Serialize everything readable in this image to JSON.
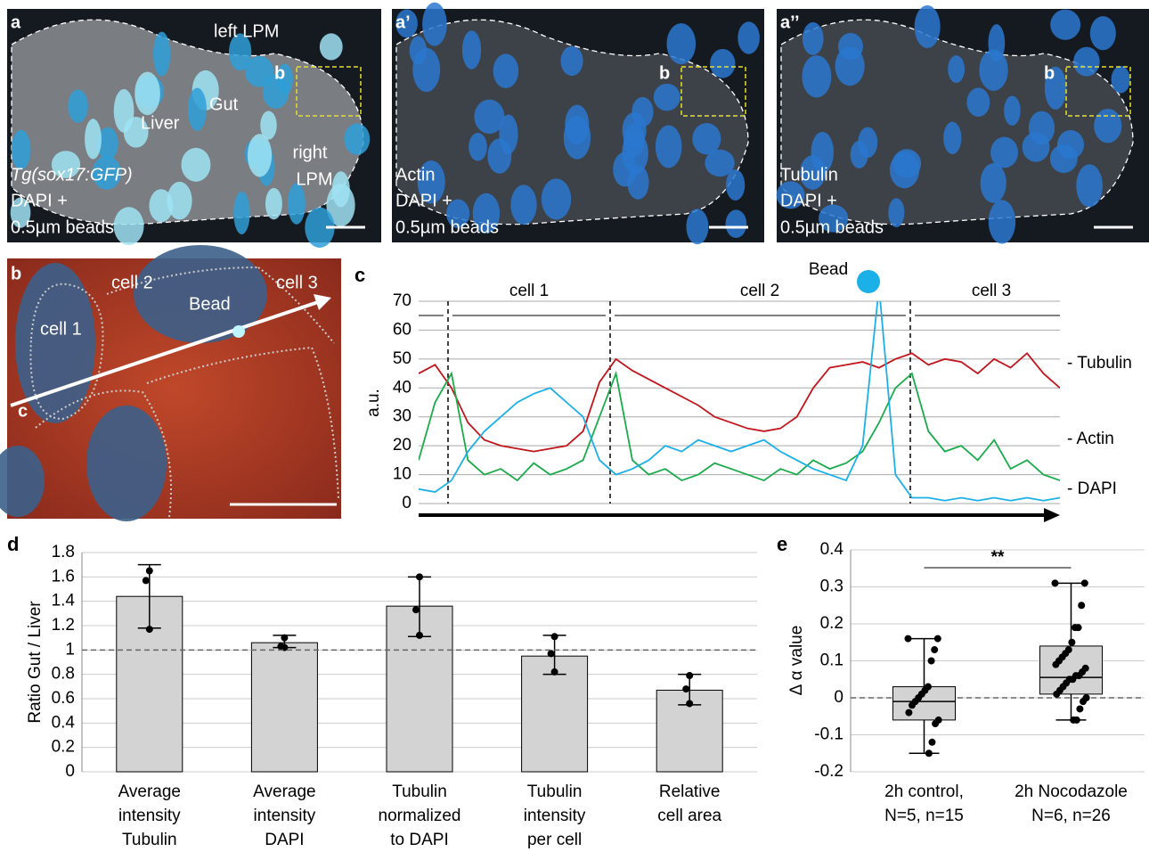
{
  "images": [
    {
      "label": "a",
      "regions": [
        "left LPM",
        "Liver",
        "Gut",
        "right",
        "LPM"
      ],
      "inset": "b",
      "marker": "Tg(sox17:GFP)",
      "channels": [
        "DAPI +",
        "0.5µm beads"
      ]
    },
    {
      "label": "a’",
      "inset": "b",
      "marker": "Actin",
      "channels": [
        "DAPI +",
        "0.5µm beads"
      ]
    },
    {
      "label": "a’’",
      "inset": "b",
      "marker": "Tubulin",
      "channels": [
        "DAPI +",
        "0.5µm beads"
      ]
    },
    {
      "label": "b",
      "regions": [
        "cell 1",
        "cell 2",
        "cell 3",
        "Bead"
      ],
      "line_label": "c"
    }
  ],
  "chart_data": [
    {
      "type": "line",
      "panel": "c",
      "ylabel": "a.u.",
      "annotations": [
        "cell 1",
        "cell 2",
        "cell 3",
        "Bead"
      ],
      "ylim": [
        0,
        70
      ],
      "yticks": [
        0,
        10,
        20,
        30,
        40,
        50,
        60,
        70
      ],
      "grid": true,
      "series": [
        {
          "name": "- Tubulin",
          "color": "#c0161c",
          "values": [
            45,
            48,
            40,
            28,
            22,
            20,
            19,
            18,
            19,
            20,
            25,
            42,
            50,
            46,
            43,
            40,
            37,
            34,
            30,
            28,
            26,
            25,
            26,
            30,
            40,
            47,
            48,
            49,
            47,
            50,
            52,
            48,
            50,
            49,
            45,
            50,
            47,
            52,
            45,
            40
          ]
        },
        {
          "name": "- Actin",
          "color": "#1aab4a",
          "values": [
            15,
            35,
            45,
            15,
            10,
            12,
            8,
            14,
            10,
            12,
            15,
            30,
            45,
            15,
            10,
            12,
            8,
            10,
            14,
            12,
            10,
            8,
            12,
            10,
            15,
            12,
            14,
            18,
            28,
            40,
            45,
            25,
            18,
            20,
            15,
            22,
            12,
            15,
            10,
            8
          ]
        },
        {
          "name": "- DAPI",
          "color": "#1bb0e8",
          "values": [
            5,
            4,
            8,
            18,
            25,
            30,
            35,
            38,
            40,
            35,
            30,
            15,
            10,
            12,
            15,
            20,
            18,
            22,
            20,
            18,
            20,
            22,
            18,
            15,
            12,
            10,
            8,
            20,
            75,
            10,
            2,
            2,
            1,
            2,
            1,
            2,
            1,
            2,
            1,
            2
          ]
        }
      ]
    },
    {
      "type": "bar",
      "panel": "d",
      "ylabel": "Ratio Gut / Liver",
      "color": "#d3d3d3",
      "categories": [
        [
          "Average",
          "intensity",
          "Tubulin"
        ],
        [
          "Average",
          "intensity",
          "DAPI"
        ],
        [
          "Tubulin",
          "normalized",
          "to DAPI"
        ],
        [
          "Tubulin",
          "intensity",
          "per cell"
        ],
        [
          "Relative",
          "cell area"
        ]
      ],
      "values": [
        1.44,
        1.06,
        1.36,
        0.95,
        0.67
      ],
      "whisker_low": [
        1.18,
        1.02,
        1.11,
        0.8,
        0.55
      ],
      "whisker_high": [
        1.7,
        1.12,
        1.6,
        1.12,
        0.8
      ],
      "points": [
        [
          1.65,
          1.57,
          1.17
        ],
        [
          1.1,
          1.03,
          1.02
        ],
        [
          1.6,
          1.33,
          1.12
        ],
        [
          1.11,
          0.97,
          0.82
        ],
        [
          0.79,
          0.68,
          0.56
        ]
      ],
      "refline": 1,
      "ylim": [
        0,
        1.8
      ],
      "yticks": [
        0,
        0.2,
        0.4,
        0.6,
        0.8,
        1,
        1.2,
        1.4,
        1.6,
        1.8
      ],
      "grid": true
    },
    {
      "type": "box",
      "panel": "e",
      "ylabel": "Δ α value",
      "color": "#d3d3d3",
      "significance": "**",
      "categories": [
        [
          "2h control,",
          "N=5, n=15"
        ],
        [
          "2h Nocodazole",
          "N=6, n=26"
        ]
      ],
      "boxes": [
        {
          "min": -0.15,
          "q1": -0.06,
          "median": -0.01,
          "q3": 0.03,
          "max": 0.16,
          "points": [
            0.16,
            0.16,
            0.13,
            0.1,
            0.03,
            0.02,
            0.01,
            0,
            -0.01,
            -0.02,
            -0.04,
            -0.06,
            -0.07,
            -0.12,
            -0.15
          ]
        },
        {
          "min": -0.06,
          "q1": 0.01,
          "median": 0.055,
          "q3": 0.14,
          "max": 0.31,
          "points": [
            0.31,
            0.31,
            0.25,
            0.19,
            0.19,
            0.15,
            0.13,
            0.12,
            0.11,
            0.1,
            0.09,
            0.08,
            0.07,
            0.06,
            0.06,
            0.05,
            0.05,
            0.04,
            0.03,
            0.02,
            0.01,
            0,
            -0.01,
            -0.03,
            -0.06,
            -0.06
          ]
        }
      ],
      "refline": 0,
      "ylim": [
        -0.2,
        0.4
      ],
      "yticks": [
        -0.2,
        -0.1,
        0,
        0.1,
        0.2,
        0.3,
        0.4
      ],
      "grid": true
    }
  ]
}
